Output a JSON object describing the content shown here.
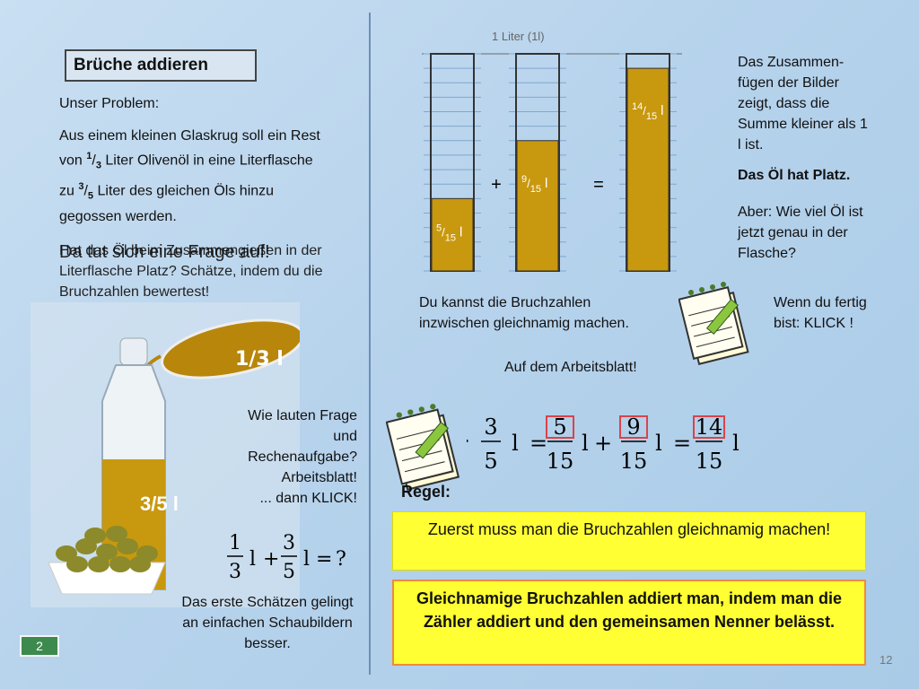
{
  "title": "Brüche addieren",
  "problem": {
    "label": "Unser Problem:",
    "text_parts": [
      "Aus einem kleinen Glaskrug soll ein Rest von ",
      "1",
      "/",
      "3",
      " Liter Olivenöl in eine Literflasche zu ",
      "3",
      "/",
      "5",
      " Liter des gleichen Öls hinzu gegossen werden."
    ]
  },
  "estimate_prompt": "Hat das Öl beim Zusammengießen in der Literflasche Platz? Schätze, indem du die Bruchzahlen bewertest!",
  "overlay_question": "Da tut sich eine Frage auf!",
  "illustration": {
    "jug_label": "1/3 l",
    "bottle_label": "3/5 l"
  },
  "question_text": [
    "Wie lauten Frage",
    "und",
    "Rechenaufgabe?",
    "Arbeitsblatt!",
    "... dann KLICK!"
  ],
  "sum_formula": {
    "a": "1",
    "b": "3",
    "c": "3",
    "d": "5",
    "unit": "l",
    "result": "?"
  },
  "estimate_note": "Das erste Schätzen gelingt an einfachen Schaubildern besser.",
  "page_badge": "2",
  "page_number": "12",
  "beakers": {
    "liter_label": "1 Liter (1l)",
    "plus": "+",
    "equals": "=",
    "items": [
      {
        "num": "5",
        "den": "15",
        "unit": "l",
        "fill": 0.3333
      },
      {
        "num": "9",
        "den": "15",
        "unit": "l",
        "fill": 0.6
      },
      {
        "num": "14",
        "den": "15",
        "unit": "l",
        "fill": 0.9333
      }
    ],
    "fill_color": "#c8980e"
  },
  "sum_description": "Das Zusammen-fügen der Bilder zeigt, dass die Summe kleiner als 1 l ist.",
  "has_space": "Das Öl hat Platz.",
  "how_much": "Aber: Wie viel Öl ist jetzt genau in der Flasche?",
  "gleichnamig_hint": "Du kannst die Bruchzahlen inzwischen gleichnamig machen.",
  "worksheet": "Auf dem Arbeitsblatt!",
  "finished": "Wenn du fertig bist: KLICK !",
  "equation": {
    "lhs_num": "3",
    "lhs_den": "5",
    "t1_num": "5",
    "t1_den": "15",
    "t2_num": "9",
    "t2_den": "15",
    "res_num": "14",
    "res_den": "15",
    "unit": "l",
    "plus": "+",
    "eq": "="
  },
  "regel_label": "Regel:",
  "rule1": "Zuerst muss man die Bruchzahlen gleichnamig machen!",
  "rule2": "Gleichnamige Bruchzahlen addiert man, indem man die Zähler addiert und den gemeinsamen Nenner belässt.",
  "colors": {
    "highlight": "#ffff33",
    "rule_border": "#f08a3c",
    "fraction_box": "#d9434b"
  }
}
